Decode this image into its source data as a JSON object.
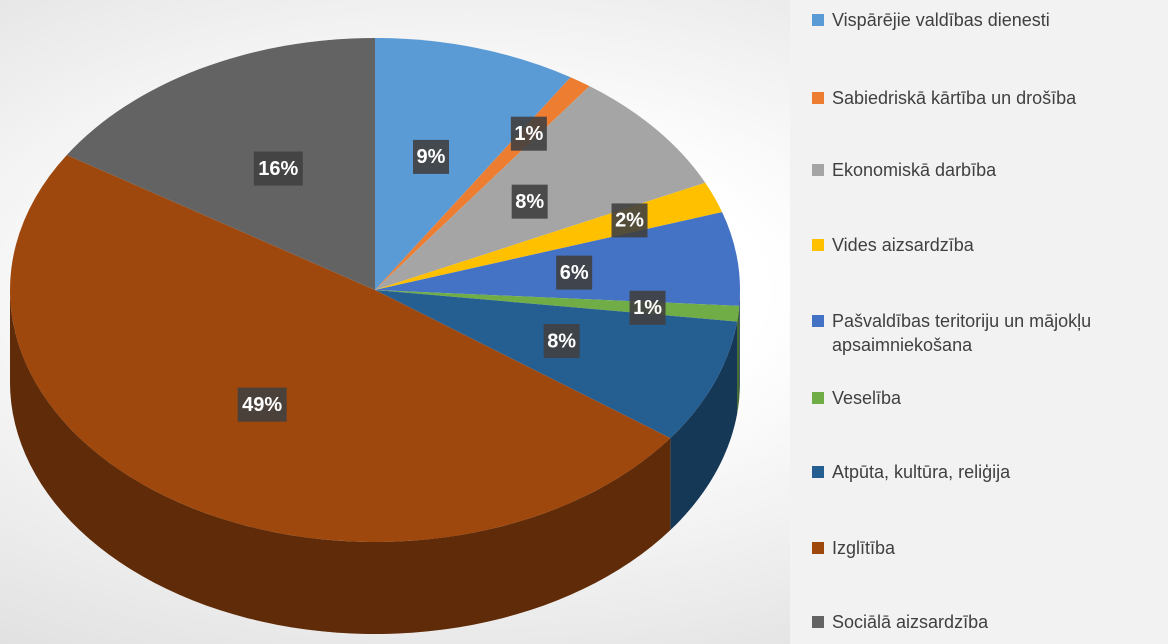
{
  "chart_data": {
    "type": "pie",
    "categories": [
      "Vispārējie valdības dienesti",
      "Sabiedriskā kārtība un drošība",
      "Ekonomiskā darbība",
      "Vides aizsardzība",
      "Pašvaldības teritoriju un mājokļu apsaimniekošana",
      "Veselība",
      "Atpūta, kultūra, reliģija",
      "Izglītība",
      "Sociālā aizsardzība"
    ],
    "values": [
      9,
      1,
      8,
      2,
      6,
      1,
      8,
      49,
      16
    ],
    "value_labels": [
      "9%",
      "1%",
      "8%",
      "2%",
      "6%",
      "1%",
      "8%",
      "49%",
      "16%"
    ],
    "colors": [
      "#5b9bd5",
      "#ed7d31",
      "#a5a5a5",
      "#ffc000",
      "#4472c4",
      "#70ad47",
      "#255e91",
      "#9e480e",
      "#636363"
    ],
    "legend": "right"
  }
}
